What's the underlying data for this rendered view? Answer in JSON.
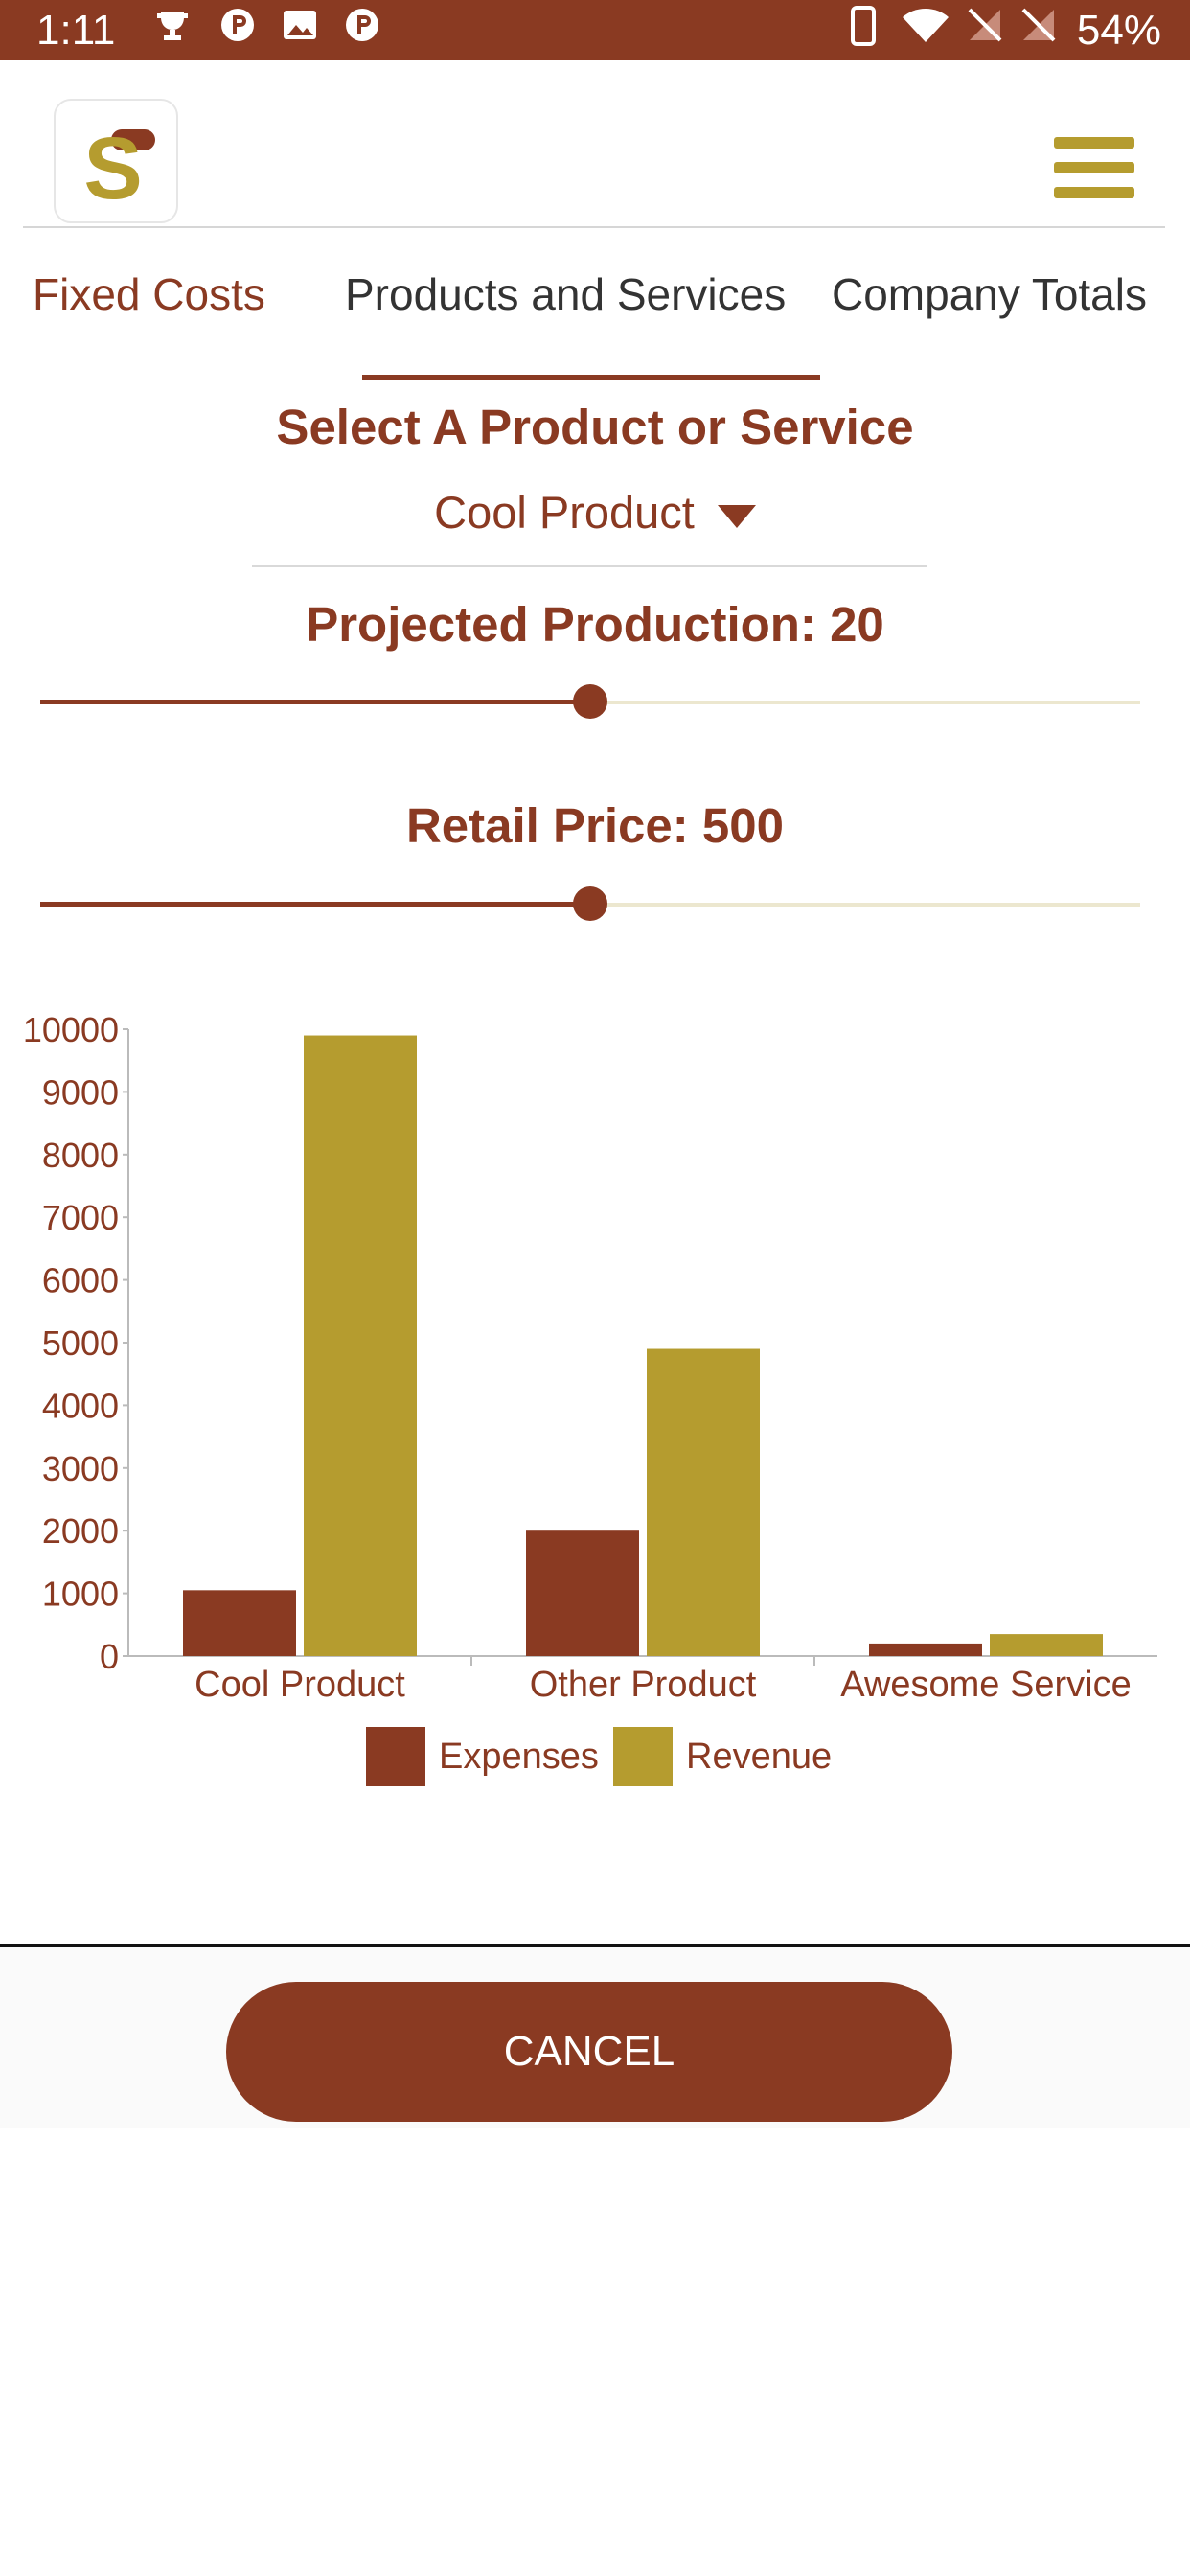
{
  "status_bar": {
    "time": "1:11",
    "icons": [
      "trophy-icon",
      "p-icon",
      "image-icon",
      "p-icon",
      "phone-icon",
      "wifi-icon",
      "no-sim-icon",
      "no-sim-icon"
    ],
    "battery": "54%"
  },
  "header": {
    "logo_letter": "S",
    "menu_icon": "hamburger-icon"
  },
  "tabs": [
    {
      "label": "Fixed Costs",
      "active": false
    },
    {
      "label": "Products and Services",
      "active": true
    },
    {
      "label": "Company Totals",
      "active": false
    }
  ],
  "selector": {
    "heading": "Select A Product or Service",
    "value": "Cool Product"
  },
  "projected_production": {
    "label": "Projected Production: 20",
    "level": 0.5
  },
  "retail_price": {
    "label": "Retail Price: 500",
    "level": 0.5
  },
  "chart_data": {
    "type": "bar",
    "categories": [
      "Cool Product",
      "Other Product",
      "Awesome Service"
    ],
    "series": [
      {
        "name": "Expenses",
        "values": [
          1050,
          2000,
          200
        ],
        "color": "#8a3a22"
      },
      {
        "name": "Revenue",
        "values": [
          9900,
          4900,
          350
        ],
        "color": "#b59c2f"
      }
    ],
    "ylim": [
      0,
      10000
    ],
    "yticks": [
      "0",
      "1000",
      "2000",
      "3000",
      "4000",
      "5000",
      "6000",
      "7000",
      "8000",
      "9000",
      "10000"
    ],
    "legend": "bottom",
    "grid": false
  },
  "actions": {
    "cancel_label": "CANCEL"
  },
  "colors": {
    "primary": "#8a3a22",
    "accent": "#b59c2f"
  }
}
